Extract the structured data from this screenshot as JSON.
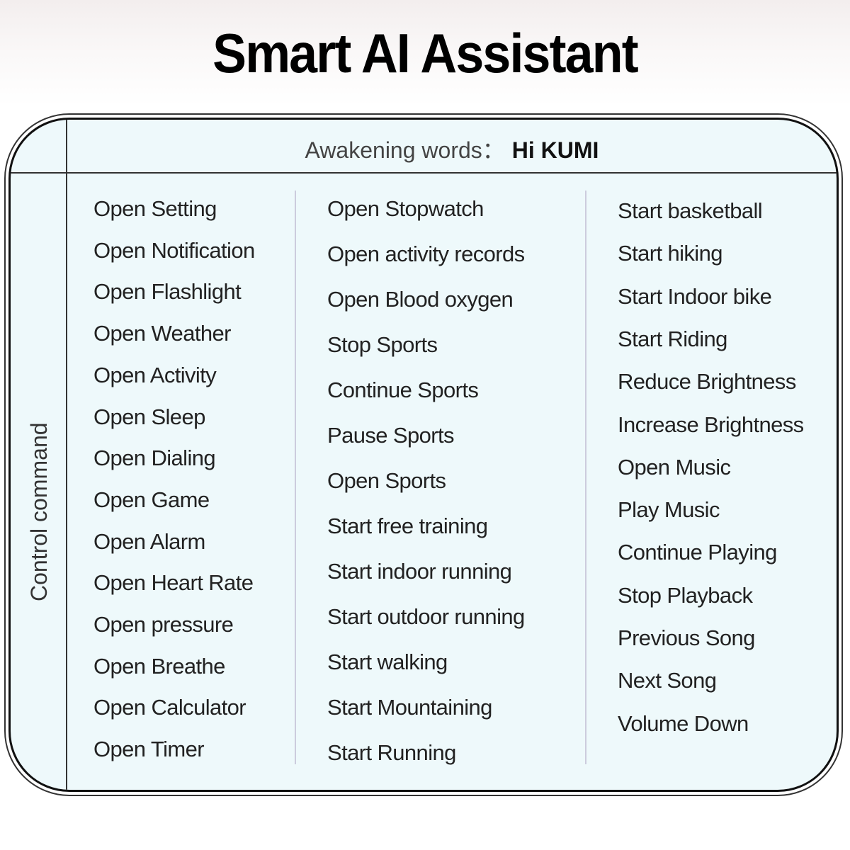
{
  "title": "Smart AI Assistant",
  "awakening": {
    "label": "Awakening words：",
    "value": "Hi KUMI"
  },
  "side_label": "Control command",
  "columns": [
    [
      "Open Setting",
      "Open Notification",
      "Open Flashlight",
      "Open Weather",
      "Open Activity",
      "Open Sleep",
      "Open Dialing",
      "Open Game",
      "Open Alarm",
      "Open Heart Rate",
      "Open pressure",
      "Open Breathe",
      "Open Calculator",
      "Open Timer"
    ],
    [
      "Open Stopwatch",
      "Open activity records",
      "Open Blood oxygen",
      "Stop Sports",
      "Continue Sports",
      "Pause Sports",
      "Open Sports",
      "Start free training",
      "Start indoor running",
      "Start outdoor running",
      "Start walking",
      "Start Mountaining",
      "Start Running"
    ],
    [
      "Start basketball",
      "Start hiking",
      "Start Indoor bike",
      "Start Riding",
      "Reduce Brightness",
      "Increase Brightness",
      "Open Music",
      "Play Music",
      "Continue Playing",
      "Stop Playback",
      "Previous Song",
      "Next Song",
      "Volume Down"
    ]
  ],
  "colors": {
    "panel": "#eef9fb",
    "border": "#111111"
  }
}
